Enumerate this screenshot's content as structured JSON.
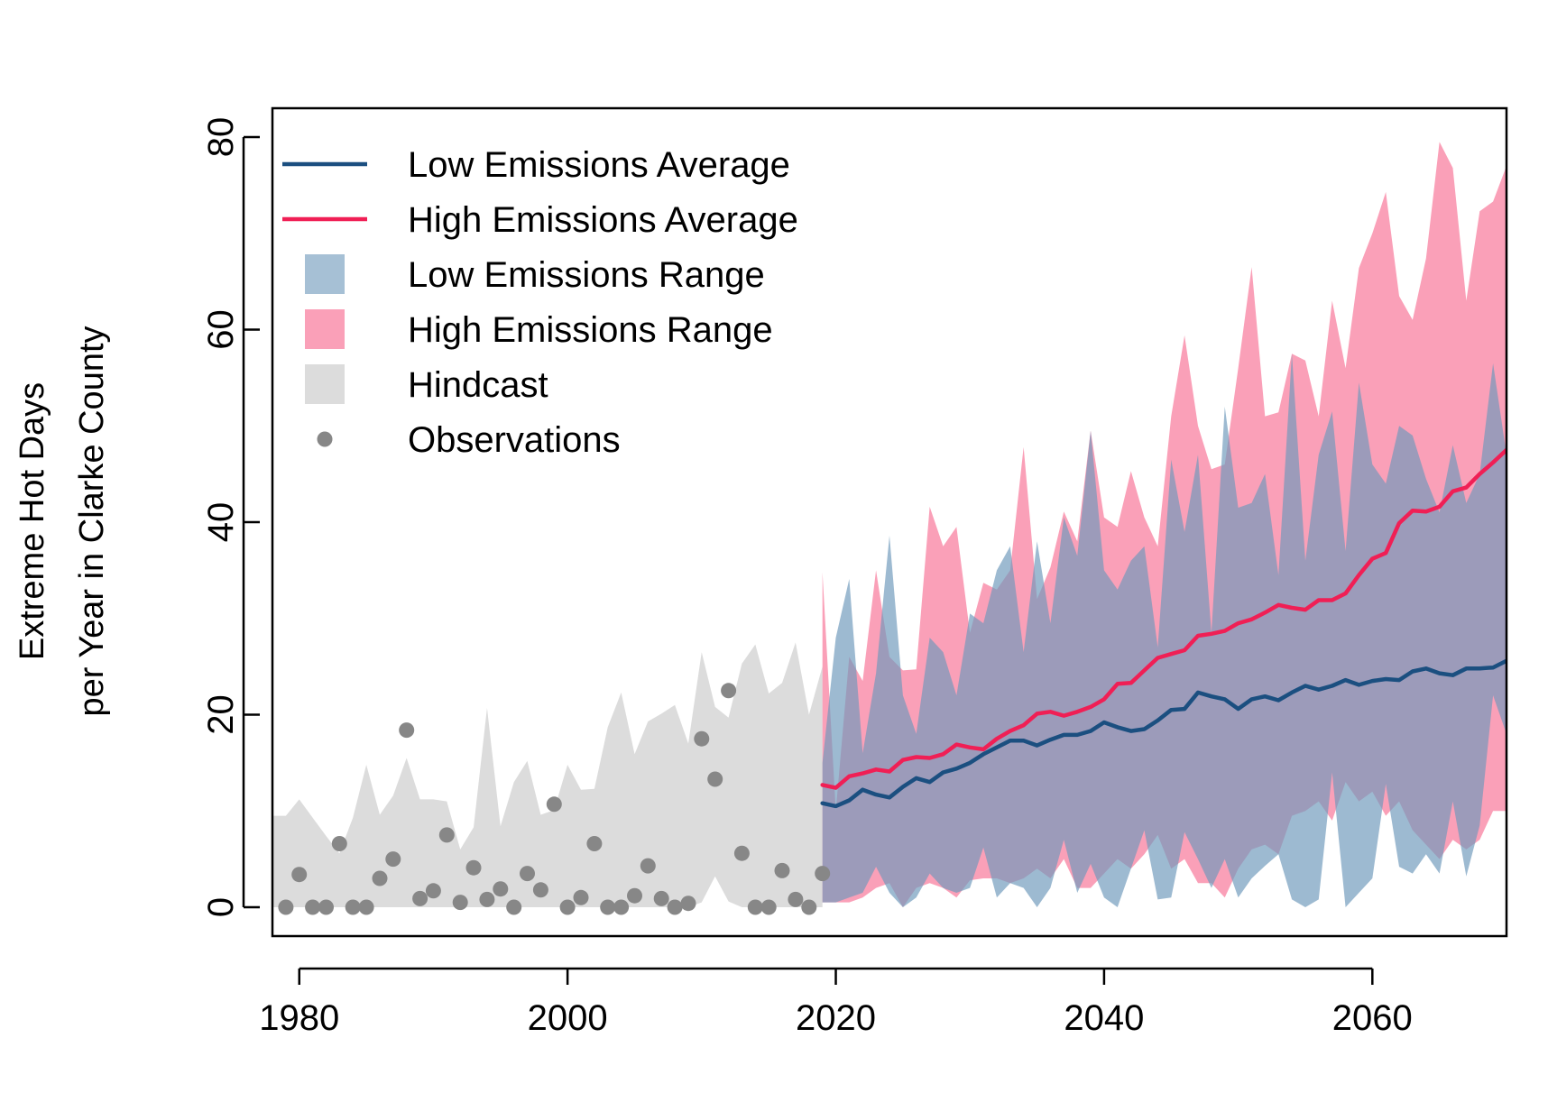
{
  "chart_data": {
    "type": "line",
    "ylabel": [
      "Extreme Hot Days",
      "per Year in Clarke County"
    ],
    "xlim": [
      1978,
      2070
    ],
    "ylim": [
      -3,
      83
    ],
    "x_ticks": [
      1980,
      2000,
      2020,
      2040,
      2060
    ],
    "y_ticks": [
      0,
      20,
      40,
      60,
      80
    ],
    "legend": {
      "placement": "top-left",
      "entries": [
        {
          "label": "Low Emissions Average",
          "kind": "line",
          "series": "low_avg"
        },
        {
          "label": "High Emissions Average",
          "kind": "line",
          "series": "high_avg"
        },
        {
          "label": "Low Emissions Range",
          "kind": "box",
          "series": "low_range"
        },
        {
          "label": "High Emissions Range",
          "kind": "box",
          "series": "high_range"
        },
        {
          "label": "Hindcast",
          "kind": "box",
          "series": "hindcast"
        },
        {
          "label": "Observations",
          "kind": "point",
          "series": "observations"
        }
      ]
    },
    "colors": {
      "low_avg": "#1b4f80",
      "high_avg": "#f01f55",
      "low_range": "#6f99bb",
      "high_range": "#f7668c",
      "hindcast": "#dcdcdc",
      "observations": "#878787"
    },
    "hindcast": {
      "x": [
        1978,
        1979,
        1980,
        1981,
        1982,
        1983,
        1984,
        1985,
        1986,
        1987,
        1988,
        1989,
        1990,
        1991,
        1992,
        1993,
        1994,
        1995,
        1996,
        1997,
        1998,
        1999,
        2000,
        2001,
        2002,
        2003,
        2004,
        2005,
        2006,
        2007,
        2008,
        2009,
        2010,
        2011,
        2012,
        2013,
        2014,
        2015,
        2016,
        2017,
        2018,
        2019
      ],
      "upper": [
        9.5,
        9.5,
        11.2,
        9.3,
        7.4,
        5.6,
        9.3,
        14.8,
        9.6,
        11.6,
        15.5,
        11.2,
        11.2,
        11.0,
        6.0,
        8.3,
        20.7,
        8.4,
        13.0,
        15.2,
        9.6,
        10.1,
        14.8,
        12.2,
        12.3,
        18.7,
        22.3,
        15.9,
        19.3,
        20.1,
        21.0,
        17.0,
        26.5,
        20.8,
        19.7,
        25.3,
        27.3,
        22.2,
        23.3,
        27.5,
        20.0,
        25.0
      ],
      "lower": [
        0,
        0,
        0,
        0,
        0,
        0,
        0,
        0,
        0,
        0,
        0,
        0,
        0,
        0,
        0,
        0,
        0,
        0,
        0,
        0,
        0,
        0,
        0,
        0,
        0,
        0,
        0,
        0,
        0,
        0,
        0,
        0,
        0.5,
        3.2,
        0.6,
        0,
        0,
        0,
        0,
        0,
        0,
        0
      ]
    },
    "observations": {
      "x": [
        1979,
        1980,
        1981,
        1982,
        1983,
        1984,
        1985,
        1986,
        1987,
        1988,
        1989,
        1990,
        1991,
        1992,
        1993,
        1994,
        1995,
        1996,
        1997,
        1998,
        1999,
        2000,
        2001,
        2002,
        2003,
        2004,
        2005,
        2006,
        2007,
        2008,
        2009,
        2010,
        2011,
        2012,
        2013,
        2014,
        2015,
        2016,
        2017,
        2018,
        2019
      ],
      "y": [
        0,
        3.4,
        0,
        0,
        6.6,
        0,
        0,
        3.0,
        5.0,
        18.4,
        0.9,
        1.7,
        7.5,
        0.5,
        4.1,
        0.8,
        1.9,
        0,
        3.5,
        1.8,
        10.7,
        0,
        1.0,
        6.6,
        0,
        0,
        1.2,
        4.3,
        0.9,
        0,
        0.4,
        17.5,
        13.3,
        22.5,
        5.6,
        0,
        0,
        3.8,
        0.8,
        0,
        3.5
      ]
    },
    "future_x": [
      2019,
      2020,
      2021,
      2022,
      2023,
      2024,
      2025,
      2026,
      2027,
      2028,
      2029,
      2030,
      2031,
      2032,
      2033,
      2034,
      2035,
      2036,
      2037,
      2038,
      2039,
      2040,
      2041,
      2042,
      2043,
      2044,
      2045,
      2046,
      2047,
      2048,
      2049,
      2050,
      2051,
      2052,
      2053,
      2054,
      2055,
      2056,
      2057,
      2058,
      2059,
      2060,
      2061,
      2062,
      2063,
      2064,
      2065,
      2066,
      2067,
      2068,
      2069,
      2070
    ],
    "high_range": {
      "upper": [
        34.8,
        10.0,
        26.0,
        23.5,
        35.0,
        26.0,
        24.6,
        24.7,
        41.6,
        37.5,
        39.5,
        28.5,
        33.7,
        33.0,
        35.0,
        47.8,
        32.0,
        35.3,
        41.1,
        38.0,
        49.5,
        40.5,
        39.5,
        45.3,
        40.5,
        37.5,
        51.0,
        59.4,
        50.0,
        45.5,
        46.0,
        56.0,
        66.5,
        51.0,
        51.4,
        57.5,
        56.8,
        51.0,
        63.0,
        56.0,
        66.4,
        70.0,
        74.3,
        63.5,
        61.0,
        67.4,
        79.5,
        76.8,
        63.0,
        72.3,
        73.3,
        77.0
      ],
      "lower": [
        0.5,
        0.5,
        0.5,
        1.0,
        2.0,
        2.5,
        0,
        2.0,
        2.5,
        2.0,
        1.0,
        2.8,
        3.0,
        3.0,
        2.5,
        3.0,
        4.0,
        3.0,
        5.0,
        2.0,
        2.0,
        3.5,
        5.0,
        4.0,
        5.5,
        7.5,
        4.0,
        5.0,
        2.5,
        2.5,
        1.0,
        4.0,
        6.0,
        6.5,
        5.5,
        9.5,
        10.0,
        11.0,
        9.0,
        13.0,
        11.0,
        12.0,
        9.5,
        11.0,
        8.0,
        6.5,
        5.0,
        7.0,
        6.0,
        7.0,
        10.0,
        10.0
      ]
    },
    "low_range": {
      "upper": [
        15.0,
        28.0,
        34.1,
        16.0,
        24.3,
        38.6,
        22.0,
        18.0,
        28.0,
        26.5,
        22.0,
        30.5,
        29.5,
        35.0,
        37.5,
        26.5,
        38.0,
        29.5,
        40.5,
        36.5,
        49.5,
        35.0,
        33.0,
        36.0,
        37.5,
        27.0,
        46.5,
        39.0,
        47.0,
        28.5,
        52.0,
        41.5,
        42.0,
        45.0,
        34.5,
        57.5,
        36.0,
        47.0,
        51.5,
        37.0,
        54.5,
        46.0,
        44.0,
        50.0,
        49.0,
        44.5,
        41.0,
        48.0,
        42.0,
        45.0,
        56.5,
        47.0
      ],
      "lower": [
        0.5,
        0.5,
        1.0,
        1.5,
        4.2,
        1.5,
        0,
        1.0,
        3.5,
        2.0,
        1.5,
        2.0,
        6.2,
        1.0,
        2.5,
        2.0,
        0,
        2.0,
        7.0,
        1.5,
        4.5,
        1.0,
        0,
        4.0,
        8.0,
        0.8,
        1.0,
        7.8,
        5.0,
        2.0,
        5.0,
        1.0,
        3.0,
        4.3,
        5.5,
        0.8,
        0,
        0.8,
        14.0,
        0,
        1.5,
        3.0,
        12.8,
        4.2,
        3.5,
        5.5,
        3.5,
        11.0,
        3.2,
        8.5,
        22.0,
        18.0
      ]
    },
    "series": [
      {
        "name": "Low Emissions Average",
        "key": "low_avg",
        "values": [
          10.8,
          10.5,
          11.1,
          12.2,
          11.7,
          11.4,
          12.5,
          13.4,
          13.0,
          14.0,
          14.4,
          15.0,
          15.9,
          16.6,
          17.3,
          17.3,
          16.8,
          17.4,
          17.9,
          17.9,
          18.3,
          19.2,
          18.7,
          18.3,
          18.5,
          19.4,
          20.5,
          20.6,
          22.3,
          21.9,
          21.6,
          20.6,
          21.6,
          21.9,
          21.5,
          22.3,
          23.0,
          22.6,
          23.0,
          23.6,
          23.1,
          23.5,
          23.7,
          23.6,
          24.5,
          24.8,
          24.3,
          24.1,
          24.8,
          24.8,
          24.9,
          25.6
        ]
      },
      {
        "name": "High Emissions Average",
        "key": "high_avg",
        "values": [
          12.7,
          12.4,
          13.6,
          13.9,
          14.3,
          14.1,
          15.3,
          15.6,
          15.5,
          15.9,
          16.9,
          16.6,
          16.4,
          17.5,
          18.3,
          18.9,
          20.1,
          20.3,
          19.9,
          20.3,
          20.8,
          21.6,
          23.2,
          23.3,
          24.6,
          25.9,
          26.3,
          26.7,
          28.2,
          28.4,
          28.7,
          29.5,
          29.9,
          30.6,
          31.4,
          31.1,
          30.9,
          31.9,
          31.9,
          32.6,
          34.5,
          36.2,
          36.8,
          39.9,
          41.2,
          41.1,
          41.6,
          43.2,
          43.6,
          45.0,
          46.2,
          47.5
        ]
      }
    ]
  }
}
